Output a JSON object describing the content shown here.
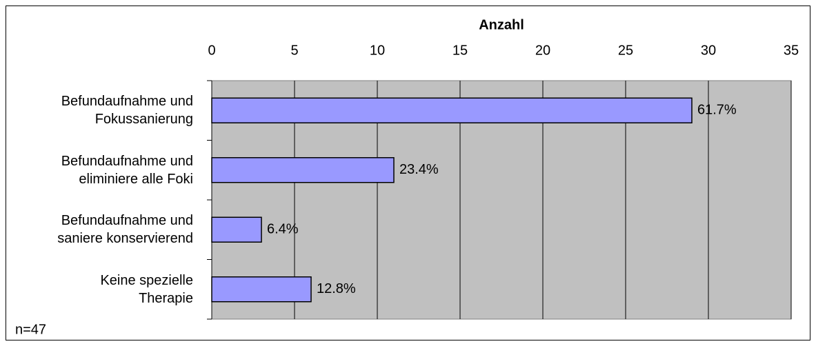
{
  "chart_data": {
    "type": "bar",
    "orientation": "horizontal",
    "x_axis_label": "Anzahl",
    "categories": [
      "Befundaufnahme und\nFokussanierung",
      "Befundaufnahme und\neliminiere alle Foki",
      "Befundaufnahme und\nsaniere konservierend",
      "Keine spezielle\nTherapie"
    ],
    "values": [
      29,
      11,
      3,
      6
    ],
    "value_labels": [
      "61.7%",
      "23.4%",
      "6.4%",
      "12.8%"
    ],
    "color": "#9999ff",
    "xlim": [
      0,
      35
    ],
    "xticks": [
      0,
      5,
      10,
      15,
      20,
      25,
      30,
      35
    ],
    "grid": true,
    "annotation": "n=47"
  }
}
